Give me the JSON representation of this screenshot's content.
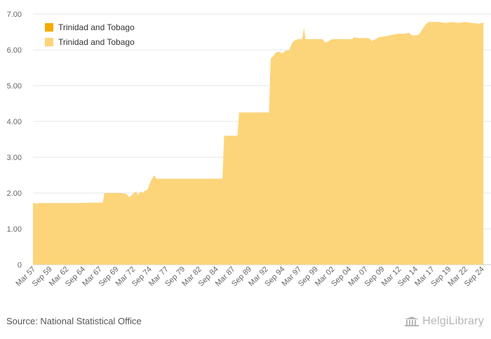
{
  "chart_data": {
    "type": "area",
    "legend": {
      "placement": "top-left",
      "entries": [
        {
          "label": "Trinidad and Tobago",
          "color": "#f5ab00"
        },
        {
          "label": "Trinidad and Tobago",
          "color": "#fcd47a"
        }
      ]
    },
    "x_tick_labels": [
      "Mar 57",
      "Sep 59",
      "Mar 62",
      "Sep 64",
      "Mar 67",
      "Sep 69",
      "Mar 72",
      "Sep 74",
      "Mar 77",
      "Sep 79",
      "Mar 82",
      "Sep 84",
      "Mar 87",
      "Sep 89",
      "Mar 92",
      "Sep 94",
      "Mar 97",
      "Sep 99",
      "Mar 02",
      "Sep 04",
      "Mar 07",
      "Sep 09",
      "Mar 12",
      "Sep 14",
      "Mar 17",
      "Sep 19",
      "Mar 22",
      "Sep 24"
    ],
    "y_tick_labels": [
      "0",
      "1.00",
      "2.00",
      "3.00",
      "4.00",
      "5.00",
      "6.00",
      "7.00"
    ],
    "ylim": [
      0,
      7
    ],
    "grid": true,
    "series": [
      {
        "name": "Trinidad and Tobago",
        "color": "#fcd47a",
        "points": [
          [
            "Mar 57",
            1.73
          ],
          [
            "Sep 57",
            1.7
          ],
          [
            "Mar 58",
            1.72
          ],
          [
            "Mar 60",
            1.72
          ],
          [
            "Mar 62",
            1.72
          ],
          [
            "Mar 64",
            1.72
          ],
          [
            "Mar 66",
            1.73
          ],
          [
            "Sep 67",
            1.73
          ],
          [
            "Dec 67",
            2.0
          ],
          [
            "Mar 70",
            2.0
          ],
          [
            "Mar 71",
            1.98
          ],
          [
            "Sep 71",
            1.88
          ],
          [
            "Mar 72",
            1.97
          ],
          [
            "Sep 72",
            2.05
          ],
          [
            "Dec 72",
            1.95
          ],
          [
            "Jun 73",
            2.05
          ],
          [
            "Sep 73",
            2.0
          ],
          [
            "Dec 73",
            2.05
          ],
          [
            "Jun 74",
            2.1
          ],
          [
            "Dec 74",
            2.35
          ],
          [
            "Jun 75",
            2.5
          ],
          [
            "Sep 75",
            2.4
          ],
          [
            "Mar 80",
            2.4
          ],
          [
            "Mar 85",
            2.4
          ],
          [
            "Sep 85",
            2.4
          ],
          [
            "Dec 85",
            3.6
          ],
          [
            "Jun 87",
            3.6
          ],
          [
            "Dec 87",
            3.6
          ],
          [
            "Mar 88",
            4.25
          ],
          [
            "Mar 92",
            4.25
          ],
          [
            "Sep 92",
            4.25
          ],
          [
            "Dec 92",
            5.75
          ],
          [
            "Jun 93",
            5.85
          ],
          [
            "Sep 93",
            5.92
          ],
          [
            "Mar 94",
            5.95
          ],
          [
            "Sep 94",
            5.9
          ],
          [
            "Mar 95",
            5.98
          ],
          [
            "Sep 95",
            5.98
          ],
          [
            "Mar 96",
            6.2
          ],
          [
            "Sep 96",
            6.28
          ],
          [
            "Mar 97",
            6.3
          ],
          [
            "Sep 97",
            6.3
          ],
          [
            "Dec 97",
            6.62
          ],
          [
            "Mar 98",
            6.3
          ],
          [
            "Sep 00",
            6.3
          ],
          [
            "Mar 01",
            6.2
          ],
          [
            "Sep 01",
            6.25
          ],
          [
            "Mar 02",
            6.3
          ],
          [
            "Mar 05",
            6.3
          ],
          [
            "Jun 05",
            6.35
          ],
          [
            "Mar 06",
            6.33
          ],
          [
            "Sep 07",
            6.33
          ],
          [
            "Mar 08",
            6.25
          ],
          [
            "Sep 08",
            6.3
          ],
          [
            "Mar 09",
            6.35
          ],
          [
            "Mar 10",
            6.38
          ],
          [
            "Mar 11",
            6.42
          ],
          [
            "Mar 12",
            6.45
          ],
          [
            "Mar 13",
            6.45
          ],
          [
            "Sep 13",
            6.48
          ],
          [
            "Mar 14",
            6.4
          ],
          [
            "Mar 15",
            6.42
          ],
          [
            "Sep 15",
            6.55
          ],
          [
            "Mar 16",
            6.7
          ],
          [
            "Sep 16",
            6.78
          ],
          [
            "Mar 17",
            6.78
          ],
          [
            "Mar 18",
            6.78
          ],
          [
            "Mar 19",
            6.75
          ],
          [
            "Mar 20",
            6.78
          ],
          [
            "Mar 21",
            6.75
          ],
          [
            "Mar 22",
            6.78
          ],
          [
            "Mar 23",
            6.75
          ],
          [
            "Mar 24",
            6.73
          ],
          [
            "Sep 24",
            6.75
          ],
          [
            "Dec 24",
            6.75
          ]
        ]
      }
    ]
  },
  "footer": {
    "source": "Source: National Statistical Office",
    "brand": "HelgiLibrary"
  },
  "colors": {
    "area": "#fcd47a",
    "grid": "#e6e6e6",
    "tick_text": "#666666"
  }
}
